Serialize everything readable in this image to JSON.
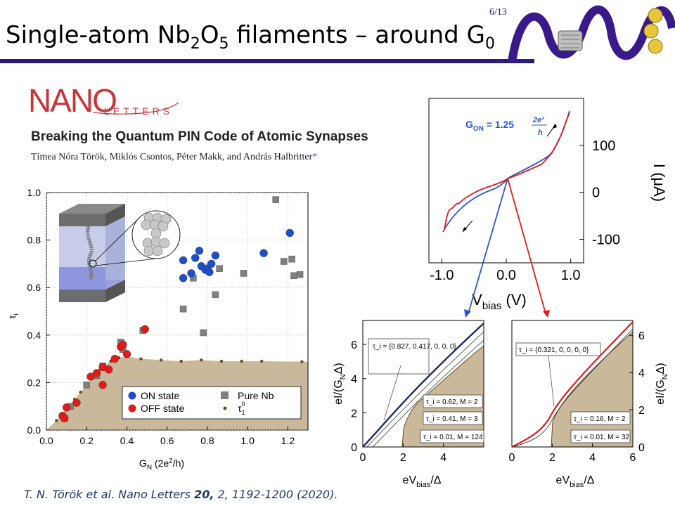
{
  "slide": {
    "title_prefix": "Single-atom Nb",
    "title_sub1": "2",
    "title_mid": "O",
    "title_sub2": "5",
    "title_suffix": " filaments – around G",
    "title_sub3": "0",
    "page_number": "6/13",
    "logo_text": "NANO"
  },
  "paper": {
    "journal": "NANO",
    "journal_sub": "LETTERS",
    "title": "Breaking the Quantum PIN Code of Atomic Synapses",
    "authors": "Tímea Nóra Török, Miklós Csontos, Péter Makk, and András Halbritter",
    "authors_star": "*",
    "citation_pre": "T. N. Török et al. Nano Letters ",
    "citation_vol": "20,",
    "citation_post": " 2, 1192-1200 (2020)."
  },
  "chart_data": [
    {
      "type": "scatter",
      "xlabel": "G_N (2e^2/h)",
      "ylabel": "τ_i",
      "xlim": [
        0,
        1.3
      ],
      "ylim": [
        0,
        1.0
      ],
      "xticks": [
        "0.0",
        "0.2",
        "0.4",
        "0.6",
        "0.8",
        "1.0",
        "1.2"
      ],
      "yticks": [
        "0.0",
        "0.2",
        "0.4",
        "0.6",
        "0.8",
        "1.0"
      ],
      "legend": [
        "ON state",
        "OFF state",
        "Pure Nb",
        "τ"
      ],
      "series": [
        {
          "name": "ON state",
          "color": "#1f4fc8",
          "points": [
            [
              0.68,
              0.64
            ],
            [
              0.68,
              0.715
            ],
            [
              0.72,
              0.66
            ],
            [
              0.74,
              0.725
            ],
            [
              0.76,
              0.755
            ],
            [
              0.77,
              0.69
            ],
            [
              0.79,
              0.675
            ],
            [
              0.8,
              0.68
            ],
            [
              0.81,
              0.665
            ],
            [
              0.82,
              0.7
            ],
            [
              0.84,
              0.735
            ],
            [
              1.08,
              0.745
            ],
            [
              1.21,
              0.83
            ]
          ]
        },
        {
          "name": "OFF state",
          "color": "#e21a1a",
          "points": [
            [
              0.08,
              0.06
            ],
            [
              0.09,
              0.05
            ],
            [
              0.1,
              0.095
            ],
            [
              0.15,
              0.115
            ],
            [
              0.22,
              0.225
            ],
            [
              0.25,
              0.24
            ],
            [
              0.28,
              0.19
            ],
            [
              0.28,
              0.265
            ],
            [
              0.31,
              0.255
            ],
            [
              0.34,
              0.3
            ],
            [
              0.37,
              0.35
            ],
            [
              0.38,
              0.36
            ],
            [
              0.4,
              0.32
            ],
            [
              0.49,
              0.425
            ]
          ]
        },
        {
          "name": "Pure Nb",
          "color": "#808080",
          "points": [
            [
              0.09,
              0.05
            ],
            [
              0.12,
              0.1
            ],
            [
              0.2,
              0.19
            ],
            [
              0.25,
              0.23
            ],
            [
              0.28,
              0.27
            ],
            [
              0.37,
              0.37
            ],
            [
              0.38,
              0.34
            ],
            [
              0.48,
              0.42
            ],
            [
              0.68,
              0.51
            ],
            [
              0.73,
              0.64
            ],
            [
              0.78,
              0.41
            ],
            [
              0.84,
              0.57
            ],
            [
              0.86,
              0.68
            ],
            [
              0.98,
              0.66
            ],
            [
              1.14,
              0.97
            ],
            [
              1.18,
              0.71
            ],
            [
              1.22,
              0.72
            ],
            [
              1.23,
              0.65
            ],
            [
              1.26,
              0.655
            ]
          ]
        },
        {
          "name": "τ",
          "color": "#6b4f1e",
          "points": [
            [
              0.05,
              0.04
            ],
            [
              0.08,
              0.07
            ],
            [
              0.11,
              0.1
            ],
            [
              0.14,
              0.13
            ],
            [
              0.17,
              0.16
            ],
            [
              0.2,
              0.19
            ],
            [
              0.23,
              0.22
            ],
            [
              0.26,
              0.25
            ],
            [
              0.29,
              0.27
            ],
            [
              0.32,
              0.29
            ],
            [
              0.36,
              0.305
            ],
            [
              0.4,
              0.31
            ],
            [
              0.47,
              0.3
            ],
            [
              0.57,
              0.295
            ],
            [
              0.67,
              0.29
            ],
            [
              0.77,
              0.295
            ],
            [
              0.87,
              0.29
            ],
            [
              0.97,
              0.29
            ],
            [
              1.07,
              0.29
            ],
            [
              1.27,
              0.288
            ]
          ]
        }
      ]
    },
    {
      "type": "line",
      "annotation": "G_ON = 1.25 2e²/h",
      "xlabel": "V_bias (V)",
      "ylabel": "I (μA)",
      "xlim": [
        -1.2,
        1.2
      ],
      "ylim": [
        -150,
        200
      ],
      "xticks": [
        "-1.0",
        "0.0",
        "1.0"
      ],
      "yticks": [
        "100",
        "0",
        "-100"
      ]
    },
    {
      "type": "line",
      "xlabel": "eV_bias/Δ",
      "ylabel": "eI/(G_NΔ)",
      "xticks": [
        "0",
        "2",
        "4"
      ],
      "yticks": [
        "0",
        "2",
        "4",
        "6"
      ],
      "annotations": [
        "τ_i = {0.827, 0.417, 0, 0, 0}",
        "τ_i = 0.62, M = 2",
        "τ_i = 0.41, M = 3",
        "τ_i = 0.01, M = 124"
      ]
    },
    {
      "type": "line",
      "xlabel": "eV_bias/Δ",
      "ylabel": "eI/(G_NΔ)",
      "xticks": [
        "0",
        "2",
        "4",
        "6"
      ],
      "yticks": [
        "0",
        "2",
        "4",
        "6"
      ],
      "annotations": [
        "τ_i = {0.321, 0, 0, 0, 0}",
        "τ_i = 0.16, M = 2",
        "τ_i = 0.01, M = 32"
      ]
    }
  ]
}
